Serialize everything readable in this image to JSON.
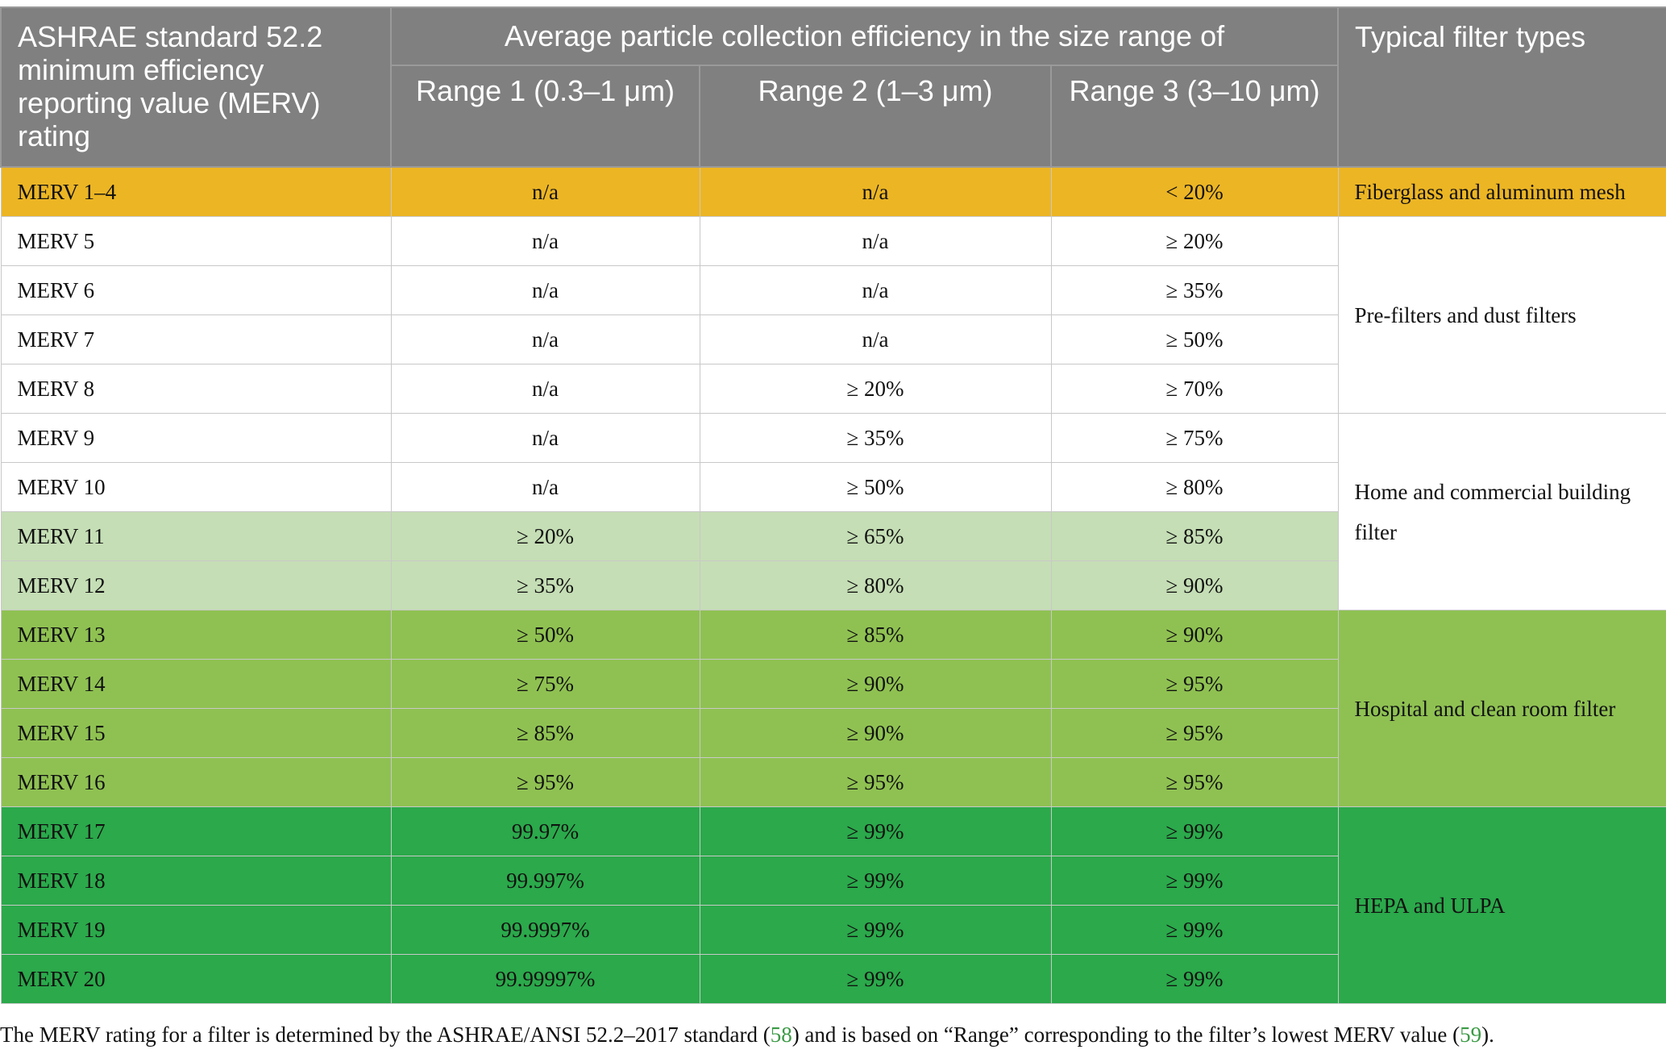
{
  "header": {
    "rating_col": "ASHRAE standard 52.2 minimum efficiency reporting value (MERV) rating",
    "group_col": "Average particle collection efficiency in the size range of",
    "range1": "Range 1 (0.3–1 μm)",
    "range2": "Range 2 (1–3 μm)",
    "range3": "Range 3 (3–10 μm)",
    "types_col": "Typical filter types"
  },
  "rows": [
    {
      "merv": "MERV 1–4",
      "r1": "n/a",
      "r2": "n/a",
      "r3": "< 20%"
    },
    {
      "merv": "MERV 5",
      "r1": "n/a",
      "r2": "n/a",
      "r3": "≥ 20%"
    },
    {
      "merv": "MERV 6",
      "r1": "n/a",
      "r2": "n/a",
      "r3": "≥ 35%"
    },
    {
      "merv": "MERV 7",
      "r1": "n/a",
      "r2": "n/a",
      "r3": "≥ 50%"
    },
    {
      "merv": "MERV 8",
      "r1": "n/a",
      "r2": "≥ 20%",
      "r3": "≥ 70%"
    },
    {
      "merv": "MERV 9",
      "r1": "n/a",
      "r2": "≥ 35%",
      "r3": "≥ 75%"
    },
    {
      "merv": "MERV 10",
      "r1": "n/a",
      "r2": "≥ 50%",
      "r3": "≥ 80%"
    },
    {
      "merv": "MERV 11",
      "r1": "≥ 20%",
      "r2": "≥ 65%",
      "r3": "≥ 85%"
    },
    {
      "merv": "MERV 12",
      "r1": "≥ 35%",
      "r2": "≥ 80%",
      "r3": "≥ 90%"
    },
    {
      "merv": "MERV 13",
      "r1": "≥ 50%",
      "r2": "≥ 85%",
      "r3": "≥ 90%"
    },
    {
      "merv": "MERV 14",
      "r1": "≥ 75%",
      "r2": "≥ 90%",
      "r3": "≥ 95%"
    },
    {
      "merv": "MERV 15",
      "r1": "≥ 85%",
      "r2": "≥ 90%",
      "r3": "≥ 95%"
    },
    {
      "merv": "MERV 16",
      "r1": "≥ 95%",
      "r2": "≥ 95%",
      "r3": "≥ 95%"
    },
    {
      "merv": "MERV 17",
      "r1": "99.97%",
      "r2": "≥ 99%",
      "r3": "≥ 99%"
    },
    {
      "merv": "MERV 18",
      "r1": "99.997%",
      "r2": "≥ 99%",
      "r3": "≥ 99%"
    },
    {
      "merv": "MERV 19",
      "r1": "99.9997%",
      "r2": "≥ 99%",
      "r3": "≥ 99%"
    },
    {
      "merv": "MERV 20",
      "r1": "99.99997%",
      "r2": "≥ 99%",
      "r3": "≥ 99%"
    }
  ],
  "filter_types": {
    "fiberglass": "Fiberglass and aluminum mesh",
    "prefilters": "Pre-filters and dust filters",
    "home_commercial": "Home and commercial building filter",
    "hospital": "Hospital and clean room filter",
    "hepa": "HEPA and ULPA"
  },
  "footnote": {
    "text_a": "The MERV rating for a filter is determined by the ASHRAE/ANSI 52.2–2017 standard (",
    "ref1": "58",
    "text_b": ") and is based on “Range” corresponding to the filter’s lowest MERV value (",
    "ref2": "59",
    "text_c": ")."
  },
  "colors": {
    "header": "#808080",
    "orange": "#ecb524",
    "light_green": "#c5deb5",
    "mid_green": "#8fc152",
    "dark_green": "#2ba94b",
    "ref_link": "#3a9a44"
  }
}
